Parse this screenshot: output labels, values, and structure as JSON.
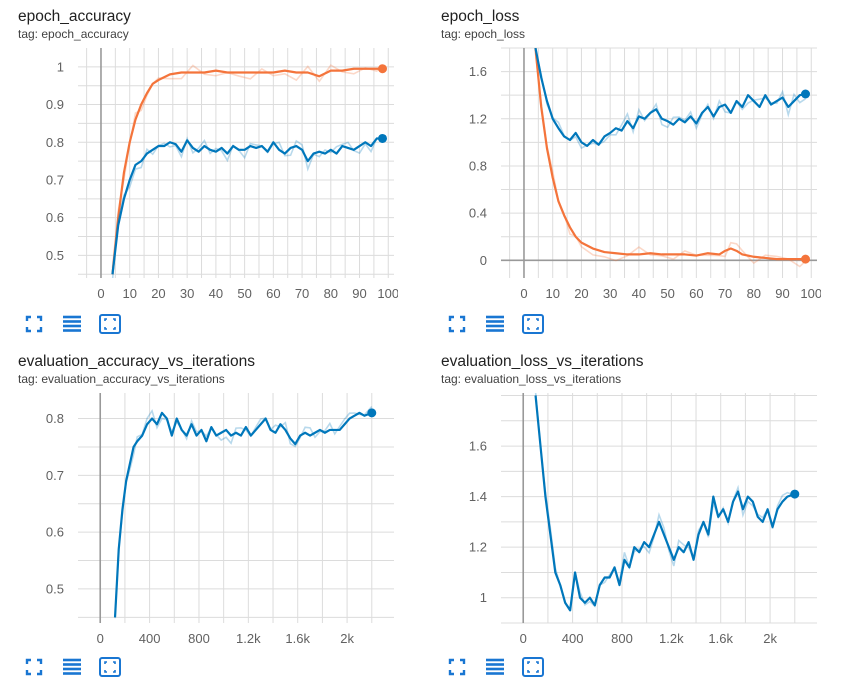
{
  "colors": {
    "orange": "#f4743b",
    "blue": "#0077bb",
    "accent": "#1976d2",
    "grid": "#dcdcdc",
    "axis": "#999999",
    "tick": "#616161"
  },
  "cards": [
    {
      "title": "epoch_accuracy",
      "tag": "tag: epoch_accuracy"
    },
    {
      "title": "epoch_loss",
      "tag": "tag: epoch_loss"
    },
    {
      "title": "evaluation_accuracy_vs_iterations",
      "tag": "tag: evaluation_accuracy_vs_iterations"
    },
    {
      "title": "evaluation_loss_vs_iterations",
      "tag": "tag: evaluation_loss_vs_iterations"
    }
  ],
  "toolbar_icons": [
    "fullscreen-icon",
    "toggle-log-scale-icon",
    "fit-domain-icon"
  ],
  "chart_data": [
    {
      "type": "line",
      "title": "epoch_accuracy",
      "xlim": [
        -8,
        102
      ],
      "ylim": [
        0.44,
        1.05
      ],
      "xticks": [
        0,
        10,
        20,
        30,
        40,
        50,
        60,
        70,
        80,
        90,
        100
      ],
      "xtick_labels": [
        "0",
        "10",
        "20",
        "30",
        "40",
        "50",
        "60",
        "70",
        "80",
        "90",
        "100"
      ],
      "yticks": [
        0.5,
        0.6,
        0.7,
        0.8,
        0.9,
        1.0
      ],
      "ytick_labels": [
        "0.5",
        "0.6",
        "0.7",
        "0.8",
        "0.9",
        "1"
      ],
      "series": [
        {
          "color": "orange",
          "x": [
            4,
            6,
            8,
            10,
            12,
            14,
            16,
            18,
            20,
            24,
            28,
            32,
            36,
            40,
            44,
            48,
            52,
            56,
            60,
            64,
            68,
            72,
            76,
            80,
            84,
            88,
            92,
            96,
            98
          ],
          "y": [
            0.45,
            0.6,
            0.72,
            0.8,
            0.86,
            0.9,
            0.93,
            0.955,
            0.965,
            0.98,
            0.985,
            0.985,
            0.985,
            0.99,
            0.985,
            0.985,
            0.985,
            0.985,
            0.985,
            0.99,
            0.985,
            0.985,
            0.975,
            0.99,
            0.99,
            0.995,
            0.995,
            0.995,
            0.995
          ]
        },
        {
          "color": "blue",
          "x": [
            4,
            6,
            8,
            10,
            12,
            14,
            16,
            18,
            20,
            22,
            24,
            26,
            28,
            30,
            32,
            34,
            36,
            38,
            40,
            42,
            44,
            46,
            48,
            50,
            52,
            54,
            56,
            58,
            60,
            62,
            64,
            66,
            68,
            70,
            72,
            74,
            76,
            78,
            80,
            82,
            84,
            86,
            88,
            90,
            92,
            94,
            96,
            98
          ],
          "y": [
            0.45,
            0.58,
            0.65,
            0.7,
            0.74,
            0.75,
            0.77,
            0.78,
            0.79,
            0.79,
            0.8,
            0.795,
            0.775,
            0.805,
            0.785,
            0.775,
            0.79,
            0.78,
            0.775,
            0.785,
            0.77,
            0.79,
            0.78,
            0.78,
            0.79,
            0.785,
            0.79,
            0.775,
            0.8,
            0.78,
            0.77,
            0.785,
            0.79,
            0.78,
            0.75,
            0.77,
            0.775,
            0.77,
            0.78,
            0.77,
            0.79,
            0.785,
            0.78,
            0.79,
            0.8,
            0.79,
            0.81,
            0.81
          ]
        }
      ]
    },
    {
      "type": "line",
      "title": "epoch_loss",
      "xlim": [
        -8,
        102
      ],
      "ylim": [
        -0.15,
        1.8
      ],
      "xticks": [
        0,
        10,
        20,
        30,
        40,
        50,
        60,
        70,
        80,
        90,
        100
      ],
      "xtick_labels": [
        "0",
        "10",
        "20",
        "30",
        "40",
        "50",
        "60",
        "70",
        "80",
        "90",
        "100"
      ],
      "yticks": [
        0,
        0.4,
        0.8,
        1.2,
        1.6
      ],
      "ytick_labels": [
        "0",
        "0.4",
        "0.8",
        "1.2",
        "1.6"
      ],
      "series": [
        {
          "color": "orange",
          "x": [
            4,
            6,
            8,
            10,
            12,
            14,
            16,
            18,
            20,
            24,
            28,
            32,
            36,
            40,
            44,
            48,
            52,
            56,
            60,
            64,
            68,
            70,
            72,
            74,
            76,
            80,
            84,
            88,
            92,
            96,
            98
          ],
          "y": [
            1.8,
            1.3,
            0.95,
            0.7,
            0.5,
            0.38,
            0.28,
            0.2,
            0.15,
            0.1,
            0.07,
            0.06,
            0.05,
            0.05,
            0.06,
            0.05,
            0.05,
            0.05,
            0.04,
            0.06,
            0.05,
            0.08,
            0.1,
            0.08,
            0.05,
            0.03,
            0.02,
            0.01,
            0.01,
            0.01,
            0.01
          ]
        },
        {
          "color": "blue",
          "x": [
            4,
            6,
            8,
            10,
            12,
            14,
            16,
            18,
            20,
            22,
            24,
            26,
            28,
            30,
            32,
            34,
            36,
            38,
            40,
            42,
            44,
            46,
            48,
            50,
            52,
            54,
            56,
            58,
            60,
            62,
            64,
            66,
            68,
            70,
            72,
            74,
            76,
            78,
            80,
            82,
            84,
            86,
            88,
            90,
            92,
            94,
            96,
            98
          ],
          "y": [
            1.8,
            1.55,
            1.35,
            1.2,
            1.12,
            1.05,
            1.02,
            1.08,
            1.0,
            0.97,
            1.02,
            0.98,
            1.05,
            1.08,
            1.12,
            1.1,
            1.18,
            1.12,
            1.22,
            1.2,
            1.25,
            1.28,
            1.2,
            1.18,
            1.15,
            1.2,
            1.17,
            1.22,
            1.16,
            1.25,
            1.3,
            1.22,
            1.3,
            1.32,
            1.25,
            1.35,
            1.3,
            1.4,
            1.35,
            1.3,
            1.4,
            1.32,
            1.35,
            1.38,
            1.3,
            1.35,
            1.4,
            1.41
          ]
        }
      ]
    },
    {
      "type": "line",
      "title": "evaluation_accuracy_vs_iterations",
      "xlim": [
        -180,
        2380
      ],
      "ylim": [
        0.44,
        0.845
      ],
      "xticks": [
        0,
        400,
        800,
        1200,
        1600,
        2000
      ],
      "xtick_labels": [
        "0",
        "400",
        "800",
        "1.2k",
        "1.6k",
        "2k"
      ],
      "yticks": [
        0.5,
        0.6,
        0.7,
        0.8
      ],
      "ytick_labels": [
        "0.5",
        "0.6",
        "0.7",
        "0.8"
      ],
      "series": [
        {
          "color": "blue",
          "x": [
            120,
            150,
            180,
            210,
            240,
            270,
            300,
            340,
            380,
            420,
            460,
            500,
            540,
            580,
            620,
            660,
            700,
            740,
            780,
            820,
            860,
            900,
            940,
            980,
            1020,
            1060,
            1100,
            1140,
            1180,
            1220,
            1260,
            1300,
            1340,
            1380,
            1420,
            1460,
            1500,
            1540,
            1580,
            1620,
            1660,
            1700,
            1740,
            1780,
            1820,
            1860,
            1900,
            1940,
            1980,
            2020,
            2060,
            2100,
            2140,
            2200
          ],
          "y": [
            0.45,
            0.57,
            0.64,
            0.69,
            0.72,
            0.75,
            0.76,
            0.77,
            0.79,
            0.8,
            0.79,
            0.81,
            0.8,
            0.77,
            0.8,
            0.78,
            0.77,
            0.79,
            0.77,
            0.78,
            0.76,
            0.785,
            0.77,
            0.775,
            0.78,
            0.77,
            0.775,
            0.77,
            0.785,
            0.77,
            0.78,
            0.79,
            0.8,
            0.78,
            0.775,
            0.79,
            0.78,
            0.765,
            0.755,
            0.77,
            0.775,
            0.77,
            0.775,
            0.78,
            0.775,
            0.78,
            0.78,
            0.78,
            0.79,
            0.8,
            0.805,
            0.81,
            0.805,
            0.81
          ]
        }
      ]
    },
    {
      "type": "line",
      "title": "evaluation_loss_vs_iterations",
      "xlim": [
        -180,
        2380
      ],
      "ylim": [
        0.9,
        1.81
      ],
      "xticks": [
        0,
        400,
        800,
        1200,
        1600,
        2000
      ],
      "xtick_labels": [
        "0",
        "400",
        "800",
        "1.2k",
        "1.6k",
        "2k"
      ],
      "yticks": [
        1,
        1.2,
        1.4,
        1.6
      ],
      "ytick_labels": [
        "1",
        "1.2",
        "1.4",
        "1.6"
      ],
      "series": [
        {
          "color": "blue",
          "x": [
            100,
            140,
            180,
            220,
            260,
            300,
            340,
            380,
            420,
            460,
            500,
            540,
            580,
            620,
            660,
            700,
            740,
            780,
            820,
            860,
            900,
            940,
            980,
            1020,
            1060,
            1100,
            1140,
            1180,
            1220,
            1260,
            1300,
            1340,
            1380,
            1420,
            1460,
            1500,
            1540,
            1580,
            1620,
            1660,
            1700,
            1740,
            1780,
            1820,
            1860,
            1900,
            1940,
            1980,
            2020,
            2060,
            2100,
            2140,
            2200
          ],
          "y": [
            1.8,
            1.6,
            1.4,
            1.25,
            1.1,
            1.05,
            0.98,
            0.95,
            1.1,
            1.0,
            0.98,
            1.0,
            0.97,
            1.05,
            1.08,
            1.08,
            1.12,
            1.05,
            1.15,
            1.12,
            1.2,
            1.18,
            1.22,
            1.2,
            1.25,
            1.3,
            1.25,
            1.2,
            1.15,
            1.2,
            1.18,
            1.22,
            1.15,
            1.25,
            1.3,
            1.25,
            1.4,
            1.32,
            1.35,
            1.3,
            1.38,
            1.42,
            1.35,
            1.4,
            1.38,
            1.32,
            1.3,
            1.35,
            1.28,
            1.35,
            1.38,
            1.4,
            1.41
          ]
        }
      ]
    }
  ]
}
